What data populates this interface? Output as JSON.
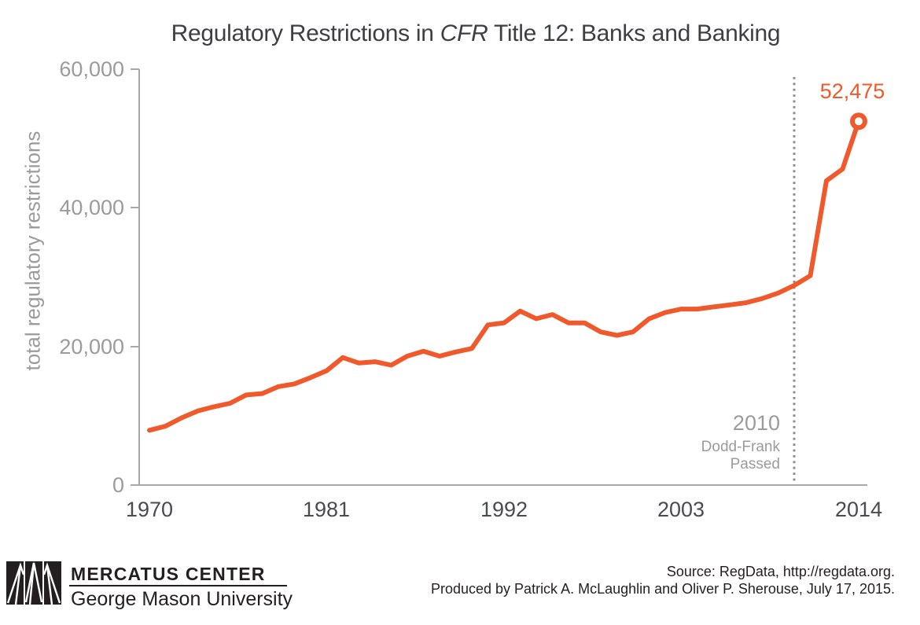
{
  "title": {
    "prefix": "Regulatory Restrictions in ",
    "italic": "CFR",
    "suffix": " Title 12: Banks and Banking"
  },
  "chart_data": {
    "type": "line",
    "title": "Regulatory Restrictions in CFR Title 12: Banks and Banking",
    "xlabel": "",
    "ylabel": "total regulatory restrictions",
    "xlim": [
      1970,
      2014
    ],
    "ylim": [
      0,
      60000
    ],
    "grid": false,
    "legend": "none",
    "x": [
      1970,
      1971,
      1972,
      1973,
      1974,
      1975,
      1976,
      1977,
      1978,
      1979,
      1980,
      1981,
      1982,
      1983,
      1984,
      1985,
      1986,
      1987,
      1988,
      1989,
      1990,
      1991,
      1992,
      1993,
      1994,
      1995,
      1996,
      1997,
      1998,
      1999,
      2000,
      2001,
      2002,
      2003,
      2004,
      2005,
      2006,
      2007,
      2008,
      2009,
      2010,
      2011,
      2012,
      2013,
      2014
    ],
    "series": [
      {
        "name": "total regulatory restrictions",
        "values": [
          7900,
          8500,
          9700,
          10700,
          11300,
          11800,
          13000,
          13200,
          14200,
          14600,
          15500,
          16500,
          18400,
          17600,
          17800,
          17300,
          18600,
          19300,
          18600,
          19200,
          19700,
          23100,
          23400,
          25100,
          24000,
          24600,
          23400,
          23400,
          22100,
          21600,
          22100,
          24000,
          24900,
          25400,
          25400,
          25700,
          26000,
          26300,
          26900,
          27700,
          28800,
          30200,
          43900,
          45600,
          52475
        ]
      }
    ],
    "ytick_labels": [
      "60,000",
      "40,000",
      "20,000",
      "0"
    ],
    "xtick_labels": [
      "1970",
      "1981",
      "1992",
      "2003",
      "2014"
    ],
    "end_point": {
      "year": 2014,
      "value": 52475,
      "label": "52,475"
    },
    "vline": {
      "year": 2010,
      "year_label": "2010",
      "label_lines": [
        "Dodd-Frank",
        "Passed"
      ]
    }
  },
  "footer": {
    "brand_name": "MERCATUS CENTER",
    "brand_sub": "George Mason University",
    "source_line1": "Source: RegData, http://regdata.org.",
    "source_line2": "Produced by Patrick A. McLaughlin and Oliver P. Sherouse, July 17, 2015."
  },
  "colors": {
    "line_orange": "#f0592b",
    "axis_gray": "#a8a8a8",
    "tick_label_gray": "#9b9b9b",
    "xtick_label_dark": "#4a4b4d",
    "vline_gray": "#8c8c8c",
    "title_dark": "#3e3f41",
    "footer_black": "#231f20"
  }
}
